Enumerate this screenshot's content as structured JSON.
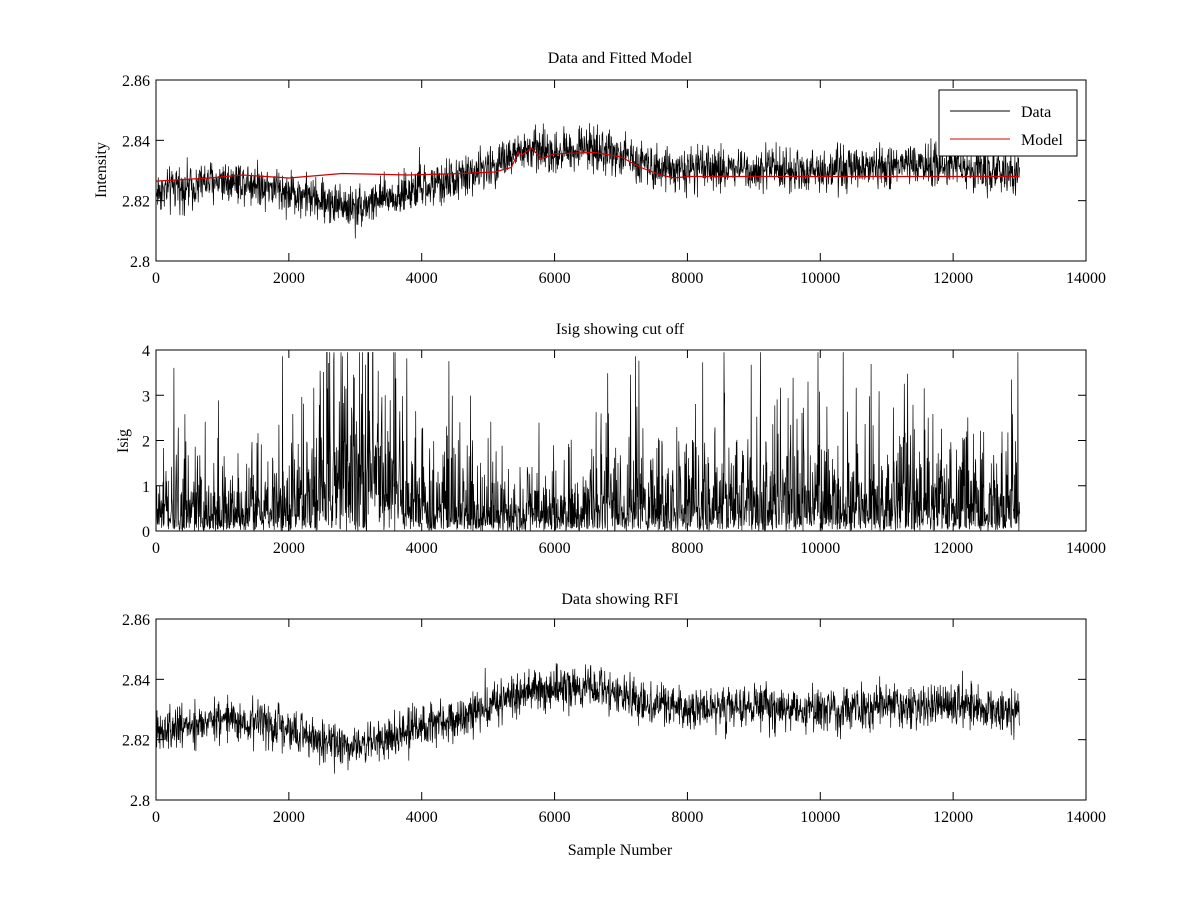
{
  "chart_data": [
    {
      "type": "line",
      "title": "Data and Fitted Model",
      "xlabel": "",
      "ylabel": "Intensity",
      "xlim": [
        0,
        14000
      ],
      "ylim": [
        2.8,
        2.86
      ],
      "xticks": [
        "0",
        "2000",
        "4000",
        "6000",
        "8000",
        "10000",
        "12000",
        "14000"
      ],
      "yticks": [
        "2.8",
        "2.82",
        "2.84",
        "2.86"
      ],
      "legend_position": "top-right",
      "series": [
        {
          "name": "Data",
          "color": "#000000",
          "style": "noisy",
          "noise_amplitude": 0.0035,
          "x": [
            0,
            500,
            1000,
            1500,
            2000,
            2500,
            3000,
            3500,
            4000,
            4500,
            5000,
            5500,
            5700,
            6000,
            6500,
            7000,
            7500,
            8000,
            9000,
            10000,
            11000,
            12000,
            12500,
            13000
          ],
          "values": [
            2.823,
            2.825,
            2.827,
            2.826,
            2.823,
            2.82,
            2.818,
            2.821,
            2.824,
            2.827,
            2.831,
            2.836,
            2.837,
            2.836,
            2.838,
            2.835,
            2.832,
            2.83,
            2.831,
            2.83,
            2.831,
            2.832,
            2.83,
            2.829
          ]
        },
        {
          "name": "Model",
          "color": "#d40000",
          "style": "line",
          "x": [
            0,
            800,
            1300,
            2000,
            2800,
            3800,
            4600,
            5100,
            5350,
            5450,
            5500,
            5650,
            5800,
            6000,
            6600,
            7000,
            7300,
            7600,
            7800,
            8000,
            9000,
            10000,
            11000,
            12000,
            13000
          ],
          "values": [
            2.8265,
            2.8275,
            2.8285,
            2.8275,
            2.829,
            2.8285,
            2.829,
            2.8295,
            2.831,
            2.836,
            2.835,
            2.8375,
            2.834,
            2.8355,
            2.836,
            2.8345,
            2.831,
            2.8285,
            2.8275,
            2.828,
            2.828,
            2.828,
            2.828,
            2.828,
            2.828
          ]
        }
      ]
    },
    {
      "type": "line",
      "title": "Isig showing cut off",
      "xlabel": "",
      "ylabel": "Isig",
      "xlim": [
        0,
        14000
      ],
      "ylim": [
        0,
        4
      ],
      "xticks": [
        "0",
        "2000",
        "4000",
        "6000",
        "8000",
        "10000",
        "12000",
        "14000"
      ],
      "yticks": [
        "0",
        "1",
        "2",
        "3",
        "4"
      ],
      "series": [
        {
          "name": "Isig",
          "color": "#000000",
          "style": "abs_noise",
          "x": [
            0,
            1000,
            2000,
            2500,
            3000,
            3500,
            4000,
            5000,
            6000,
            7000,
            7500,
            8000,
            9000,
            10000,
            11000,
            11500,
            12000,
            13000
          ],
          "values": [
            0.55,
            0.55,
            0.7,
            1.3,
            1.7,
            1.2,
            0.8,
            0.5,
            0.45,
            0.7,
            0.85,
            0.75,
            0.8,
            0.75,
            0.65,
            0.8,
            0.75,
            0.6
          ]
        }
      ]
    },
    {
      "type": "line",
      "title": "Data showing RFI",
      "xlabel": "Sample Number",
      "ylabel": "",
      "xlim": [
        0,
        14000
      ],
      "ylim": [
        2.8,
        2.86
      ],
      "xticks": [
        "0",
        "2000",
        "4000",
        "6000",
        "8000",
        "10000",
        "12000",
        "14000"
      ],
      "yticks": [
        "2.8",
        "2.82",
        "2.84",
        "2.86"
      ],
      "series": [
        {
          "name": "Data",
          "color": "#000000",
          "style": "noisy",
          "noise_amplitude": 0.0035,
          "x": [
            0,
            500,
            1000,
            1500,
            2000,
            2500,
            3000,
            3500,
            4000,
            4500,
            5000,
            5500,
            5700,
            6000,
            6500,
            7000,
            7500,
            8000,
            9000,
            10000,
            11000,
            12000,
            12500,
            13000
          ],
          "values": [
            2.823,
            2.825,
            2.827,
            2.826,
            2.823,
            2.82,
            2.818,
            2.821,
            2.824,
            2.827,
            2.831,
            2.836,
            2.837,
            2.836,
            2.838,
            2.835,
            2.832,
            2.83,
            2.831,
            2.83,
            2.831,
            2.832,
            2.83,
            2.829
          ]
        }
      ]
    }
  ]
}
